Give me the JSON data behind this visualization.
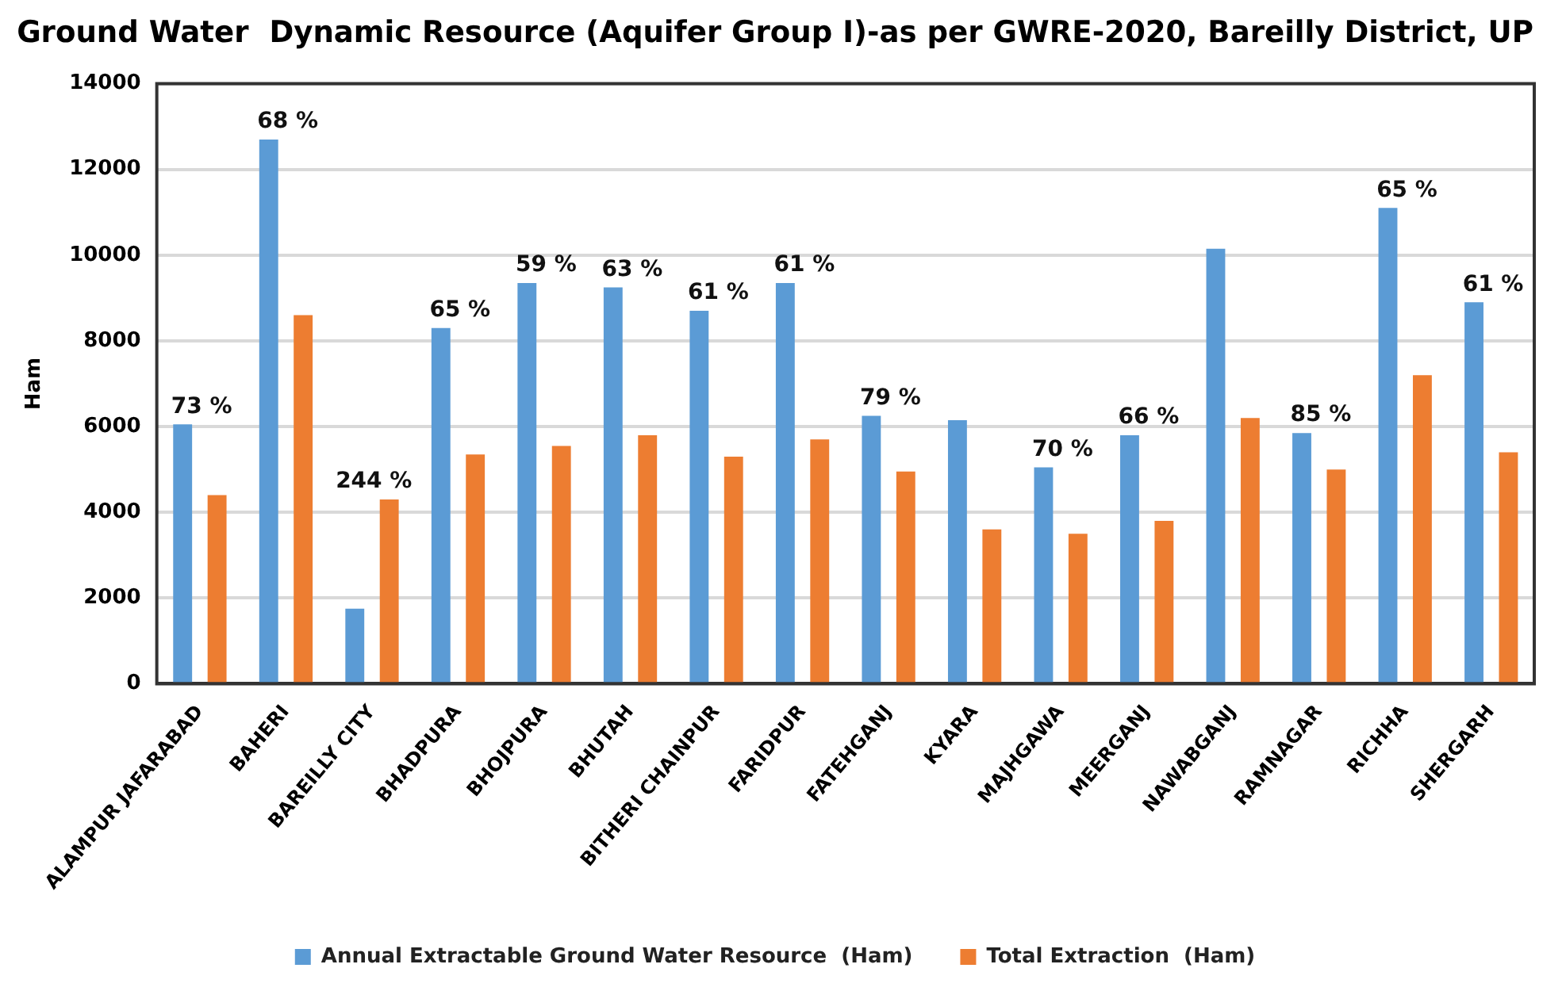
{
  "chart_data": {
    "type": "bar",
    "title": "Ground Water  Dynamic Resource (Aquifer Group I)-as per GWRE-2020, Bareilly District, UP",
    "ylabel": "Ham",
    "categories": [
      "ALAMPUR JAFARABAD",
      "BAHERI",
      "BAREILLY CITY",
      "BHADPURA",
      "BHOJPURA",
      "BHUTAH",
      "BITHERI CHAINPUR",
      "FARIDPUR",
      "FATEHGANJ",
      "KYARA",
      "MAJHGAWA",
      "MEERGANJ",
      "NAWABGANJ",
      "RAMNAGAR",
      "RICHHA",
      "SHERGARH"
    ],
    "series": [
      {
        "name": "Annual Extractable Ground Water Resource  (Ham)",
        "color": "#5b9bd5",
        "values": [
          6050,
          12700,
          1750,
          8300,
          9350,
          9250,
          8700,
          9350,
          6250,
          6150,
          5050,
          5800,
          10150,
          5850,
          11100,
          8900
        ]
      },
      {
        "name": "Total Extraction  (Ham)",
        "color": "#ed7d31",
        "values": [
          4400,
          8600,
          4300,
          5350,
          5550,
          5800,
          5300,
          5700,
          4950,
          3600,
          3500,
          3800,
          6200,
          5000,
          7200,
          5400
        ]
      }
    ],
    "ylim": [
      0,
      14000
    ],
    "yticks": [
      0,
      2000,
      4000,
      6000,
      8000,
      10000,
      12000,
      14000
    ],
    "grid": "y",
    "legend": "bottom",
    "annotations": [
      {
        "text": "73 %",
        "x": "ALAMPUR JAFARABAD",
        "y": 6050
      },
      {
        "text": "68 %",
        "x": "BAHERI",
        "y": 12700
      },
      {
        "text": "244 %",
        "x": "BAREILLY CITY",
        "y": 4300
      },
      {
        "text": "65 %",
        "x": "BHADPURA",
        "y": 8300
      },
      {
        "text": "59 %",
        "x": "BHOJPURA",
        "y": 9350
      },
      {
        "text": "63 %",
        "x": "BHUTAH",
        "y": 9250
      },
      {
        "text": "61 %",
        "x": "BITHERI CHAINPUR",
        "y": 8700
      },
      {
        "text": "61 %",
        "x": "FARIDPUR",
        "y": 9350
      },
      {
        "text": "79 %",
        "x": "FATEHGANJ",
        "y": 6250
      },
      {
        "text": "70 %",
        "x": "MAJHGAWA",
        "y": 5050
      },
      {
        "text": "66 %",
        "x": "MEERGANJ",
        "y": 5800
      },
      {
        "text": "85 %",
        "x": "RAMNAGAR",
        "y": 5850
      },
      {
        "text": "65 %",
        "x": "RICHHA",
        "y": 11100
      },
      {
        "text": "61 %",
        "x": "SHERGARH",
        "y": 8900
      }
    ]
  }
}
